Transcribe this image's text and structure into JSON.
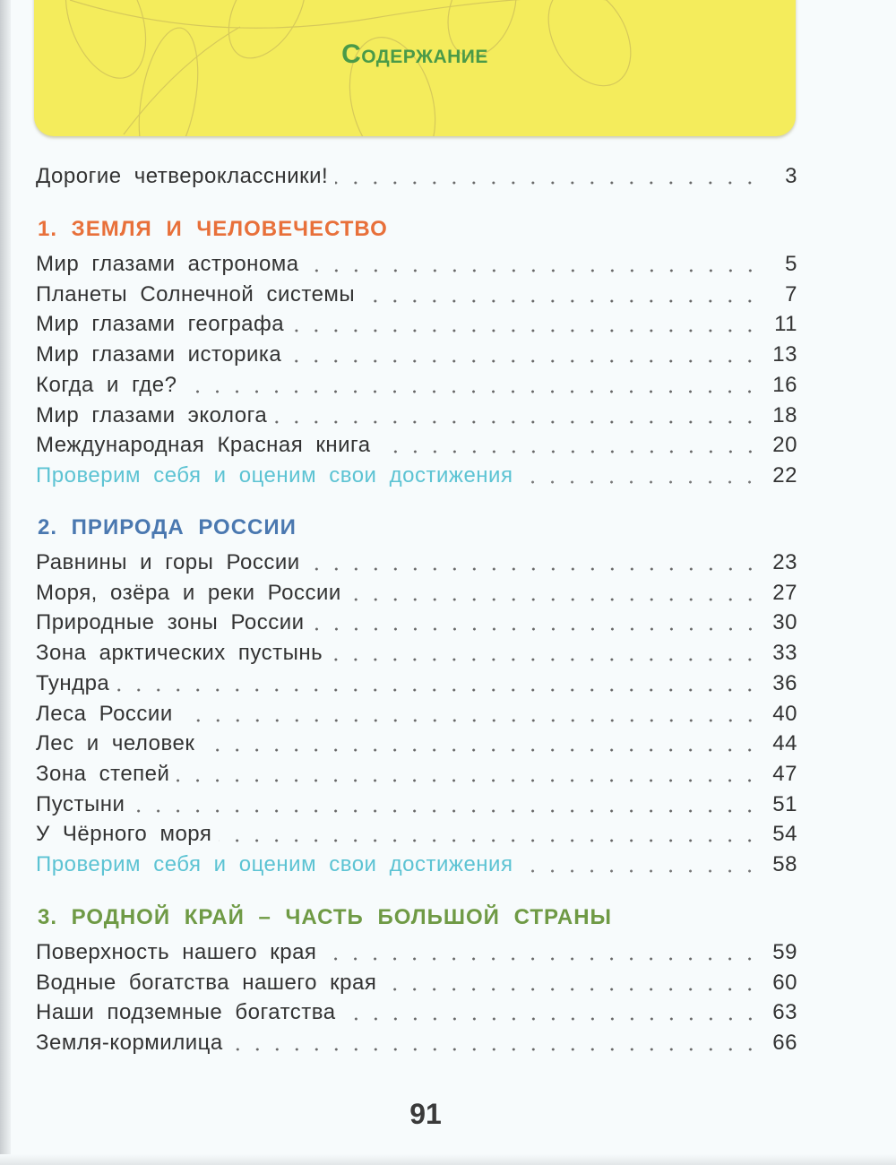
{
  "title": "Содержание",
  "intro": {
    "label": "Дорогие четвероклассники!",
    "page": "3"
  },
  "sections": [
    {
      "heading": "1. ЗЕМЛЯ И ЧЕЛОВЕЧЕСТВО",
      "color": "#e8703a",
      "items": [
        {
          "label": "Мир глазами астронома",
          "page": "5"
        },
        {
          "label": "Планеты Солнечной системы",
          "page": "7"
        },
        {
          "label": "Мир глазами географа",
          "page": "11"
        },
        {
          "label": "Мир глазами историка",
          "page": "13"
        },
        {
          "label": "Когда и где?",
          "page": "16"
        },
        {
          "label": "Мир глазами эколога",
          "page": "18"
        },
        {
          "label": "Международная Красная книга",
          "page": "20"
        },
        {
          "label": "Проверим себя и оценим свои достижения",
          "page": "22",
          "check": true
        }
      ]
    },
    {
      "heading": "2. ПРИРОДА РОССИИ",
      "color": "#4a78b0",
      "items": [
        {
          "label": "Равнины и горы России",
          "page": "23"
        },
        {
          "label": "Моря, озёра и реки России",
          "page": "27"
        },
        {
          "label": "Природные зоны России",
          "page": "30"
        },
        {
          "label": "Зона арктических пустынь",
          "page": "33"
        },
        {
          "label": "Тундра",
          "page": "36"
        },
        {
          "label": "Леса России",
          "page": "40"
        },
        {
          "label": "Лес и человек",
          "page": "44"
        },
        {
          "label": "Зона степей",
          "page": "47"
        },
        {
          "label": "Пустыни",
          "page": "51"
        },
        {
          "label": "У Чёрного моря",
          "page": "54"
        },
        {
          "label": "Проверим себя и оценим свои достижения",
          "page": "58",
          "check": true
        }
      ]
    },
    {
      "heading": "3. РОДНОЙ КРАЙ – ЧАСТЬ БОЛЬШОЙ СТРАНЫ",
      "color": "#6f9a45",
      "items": [
        {
          "label": "Поверхность нашего края",
          "page": "59"
        },
        {
          "label": "Водные богатства нашего края",
          "page": "60"
        },
        {
          "label": "Наши подземные богатства",
          "page": "63"
        },
        {
          "label": "Земля-кормилица",
          "page": "66"
        }
      ]
    }
  ],
  "page_number": "91",
  "colors": {
    "banner": "#f4ec5c",
    "title": "#4a9a48",
    "check_items": "#5cc3d3"
  }
}
